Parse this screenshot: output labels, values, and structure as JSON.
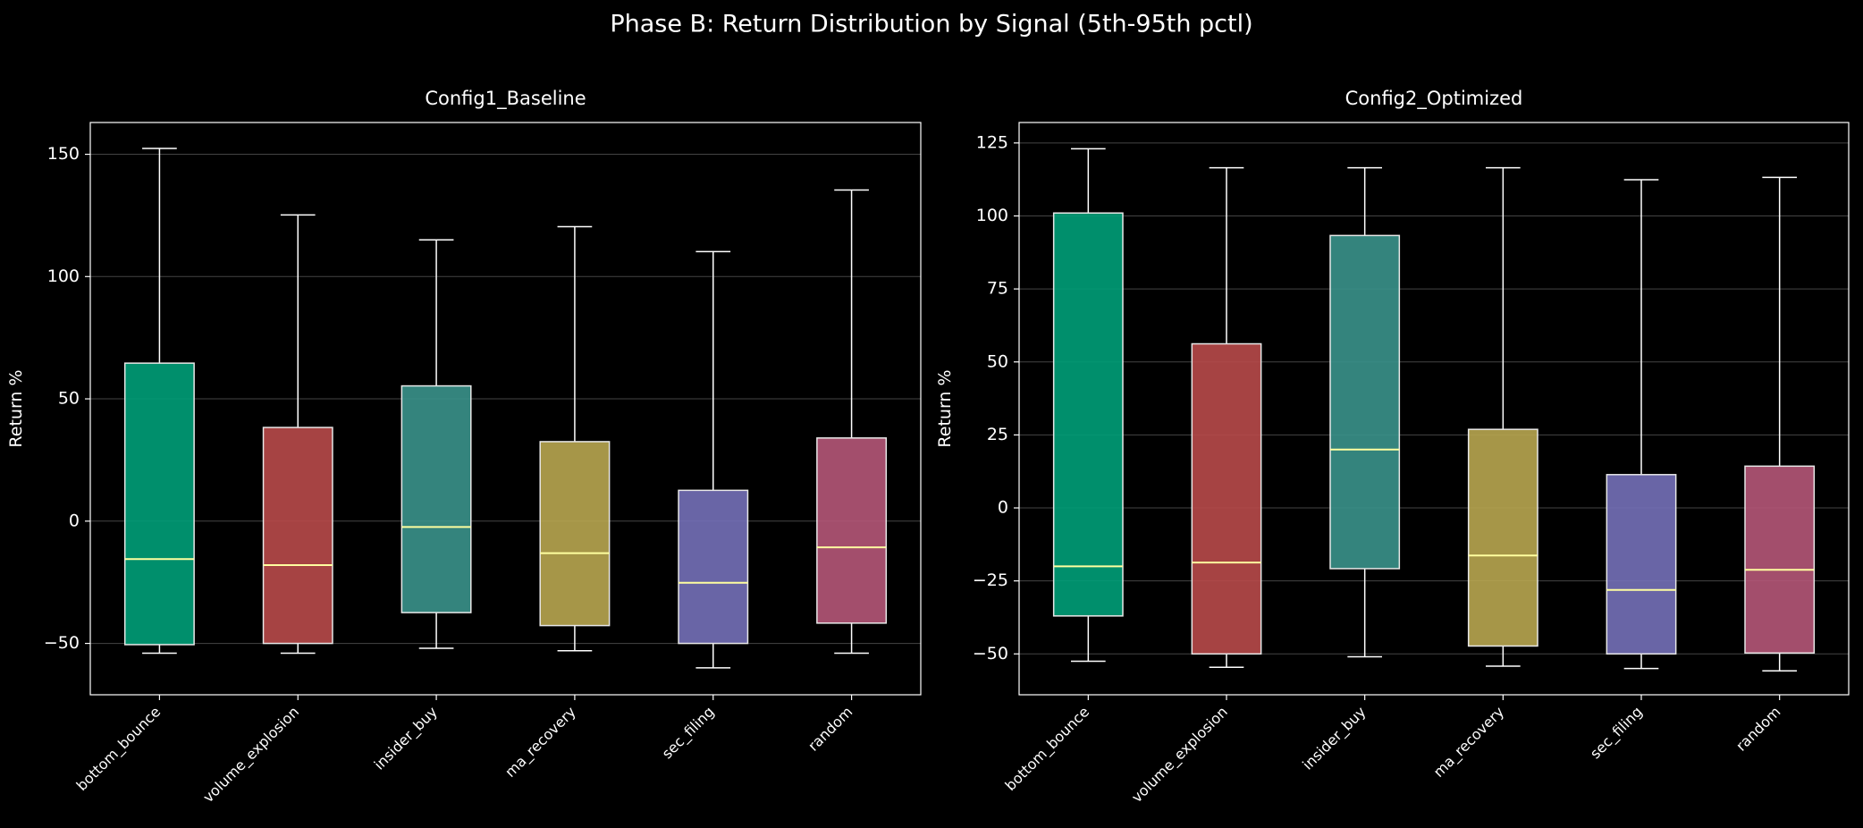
{
  "title": "Phase B: Return Distribution by Signal (5th-95th pctl)",
  "chart_data": [
    {
      "type": "box",
      "title": "Config1_Baseline",
      "ylabel": "Return %",
      "categories": [
        "bottom_bounce",
        "volume_explosion",
        "insider_buy",
        "ma_recovery",
        "sec_filing",
        "random"
      ],
      "colors": [
        "#009e78",
        "#b84a4a",
        "#3a928b",
        "#b8a650",
        "#7470b8",
        "#b55678"
      ],
      "whisker_low": [
        -54,
        -54,
        -52,
        -53,
        -60,
        -54
      ],
      "q1": [
        -50.5,
        -50,
        -37.4,
        -42.7,
        -50,
        -41.7
      ],
      "median": [
        -15.5,
        -18,
        -2.4,
        -13.1,
        -25.2,
        -10.7
      ],
      "q3": [
        64.6,
        38.3,
        55.3,
        32.5,
        12.6,
        34
      ],
      "whisker_high": [
        152.4,
        125.2,
        115,
        120.4,
        110.2,
        135.4
      ],
      "ylim": [
        -71,
        163
      ],
      "yticks": [
        {
          "value": -50,
          "label": "−50"
        },
        0,
        50,
        100,
        150
      ],
      "grid": true
    },
    {
      "type": "box",
      "title": "Config2_Optimized",
      "ylabel": "Return %",
      "categories": [
        "bottom_bounce",
        "volume_explosion",
        "insider_buy",
        "ma_recovery",
        "sec_filing",
        "random"
      ],
      "colors": [
        "#009e78",
        "#b84a4a",
        "#3a928b",
        "#b8a650",
        "#7470b8",
        "#b55678"
      ],
      "whisker_low": [
        -52.5,
        -54.6,
        -51,
        -54.2,
        -55,
        -55.8
      ],
      "q1": [
        -37,
        -50,
        -20.8,
        -47.3,
        -50,
        -49.7
      ],
      "median": [
        -20,
        -18.7,
        20,
        -16.3,
        -28.1,
        -21.2
      ],
      "q3": [
        101,
        56.2,
        93.3,
        26.9,
        11.4,
        14.3
      ],
      "whisker_high": [
        123,
        116.5,
        116.5,
        116.5,
        112.4,
        113.2
      ],
      "ylim": [
        -64,
        132
      ],
      "yticks": [
        {
          "value": -50,
          "label": "−50"
        },
        {
          "value": -25,
          "label": "−25"
        },
        0,
        25,
        50,
        75,
        100,
        125
      ],
      "grid": true
    }
  ]
}
